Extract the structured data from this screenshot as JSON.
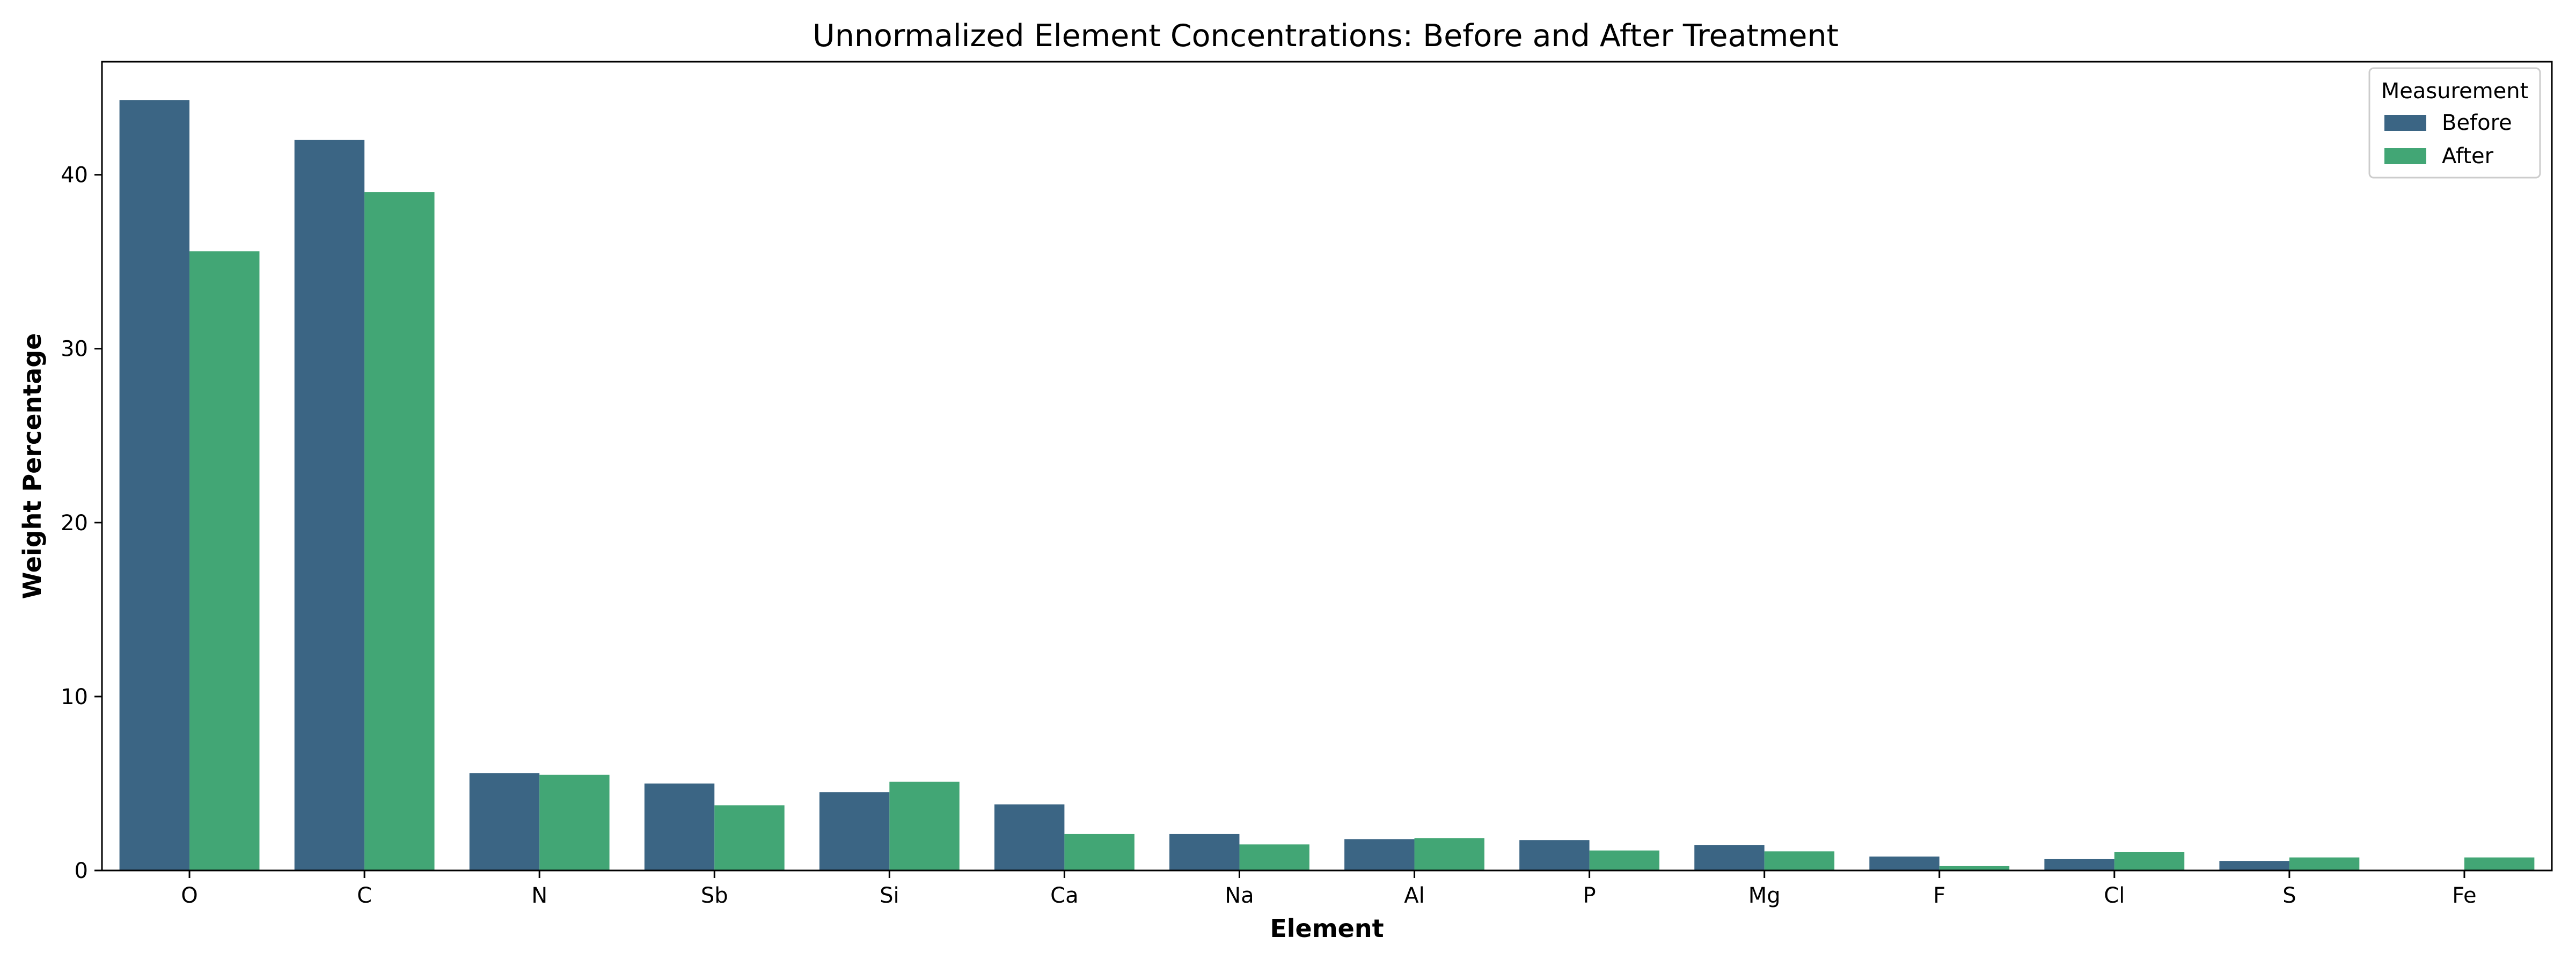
{
  "chart_data": {
    "type": "bar",
    "title": "Unnormalized Element Concentrations: Before and After Treatment",
    "xlabel": "Element",
    "ylabel": "Weight Percentage",
    "categories": [
      "O",
      "C",
      "N",
      "Sb",
      "Si",
      "Ca",
      "Na",
      "Al",
      "P",
      "Mg",
      "F",
      "Cl",
      "S",
      "Fe"
    ],
    "series": [
      {
        "name": "Before",
        "color": "#3b6584",
        "values": [
          44.3,
          42.0,
          5.6,
          5.0,
          4.5,
          3.8,
          2.1,
          1.8,
          1.75,
          1.45,
          0.8,
          0.65,
          0.55,
          0.0
        ]
      },
      {
        "name": "After",
        "color": "#42a675",
        "values": [
          35.6,
          39.0,
          5.5,
          3.75,
          5.1,
          2.1,
          1.5,
          1.85,
          1.15,
          1.1,
          0.25,
          1.05,
          0.75,
          0.75
        ]
      }
    ],
    "ylim": [
      0,
      46.5
    ],
    "yticks": [
      0,
      10,
      20,
      30,
      40
    ],
    "legend": {
      "title": "Measurement",
      "position": "upper-right"
    },
    "grid": false
  }
}
